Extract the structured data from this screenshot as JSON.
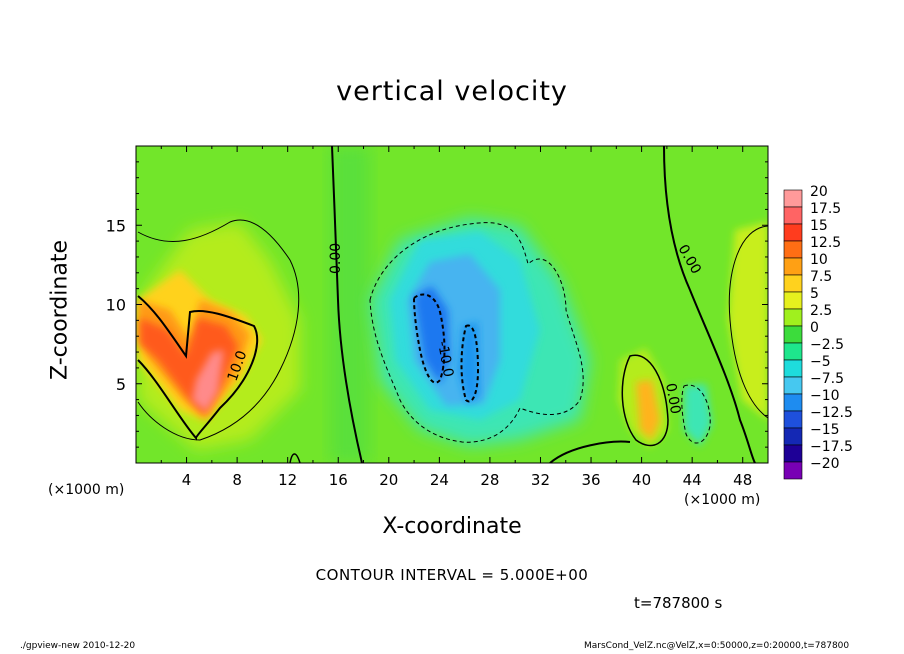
{
  "chart_data": {
    "type": "heatmap",
    "title": "vertical velocity",
    "xlabel": "X-coordinate",
    "ylabel": "Z-coordinate",
    "x_unit_label": "(×1000 m)",
    "xlim": [
      0,
      50
    ],
    "ylim": [
      0,
      20
    ],
    "x_ticks": [
      4,
      8,
      12,
      16,
      20,
      24,
      28,
      32,
      36,
      40,
      44,
      48
    ],
    "y_ticks": [
      5,
      10,
      15
    ],
    "colorbar": {
      "levels": [
        20,
        17.5,
        15,
        12.5,
        10,
        7.5,
        5,
        2.5,
        0,
        -2.5,
        -5,
        -7.5,
        -10,
        -12.5,
        -15,
        -17.5,
        -20
      ],
      "labels": [
        "20",
        "17.5",
        "15",
        "12.5",
        "10",
        "7.5",
        "5",
        "2.5",
        "0",
        "−2.5",
        "−5",
        "−7.5",
        "−10",
        "−12.5",
        "−15",
        "−17.5",
        "−20"
      ],
      "colors": [
        "#ff9a9a",
        "#ff6464",
        "#ff3c1e",
        "#ff6e14",
        "#ffa014",
        "#ffd21e",
        "#e6f01e",
        "#a0f01e",
        "#3cdc3c",
        "#1ee68c",
        "#1edcdc",
        "#46c8f0",
        "#1e8cf0",
        "#1e50dc",
        "#1428b4",
        "#1e0096",
        "#7800b4"
      ]
    },
    "contour_labels": [
      "0.00",
      "10.0",
      "-10.0",
      "0.00",
      "0.00"
    ],
    "contour_interval": "CONTOUR INTERVAL = 5.000E+00",
    "time": "t=787800 s"
  },
  "footer": {
    "left": "./gpview-new  2010-12-20",
    "right": "MarsCond_VelZ.nc@VelZ,x=0:50000,z=0:20000,t=787800"
  }
}
